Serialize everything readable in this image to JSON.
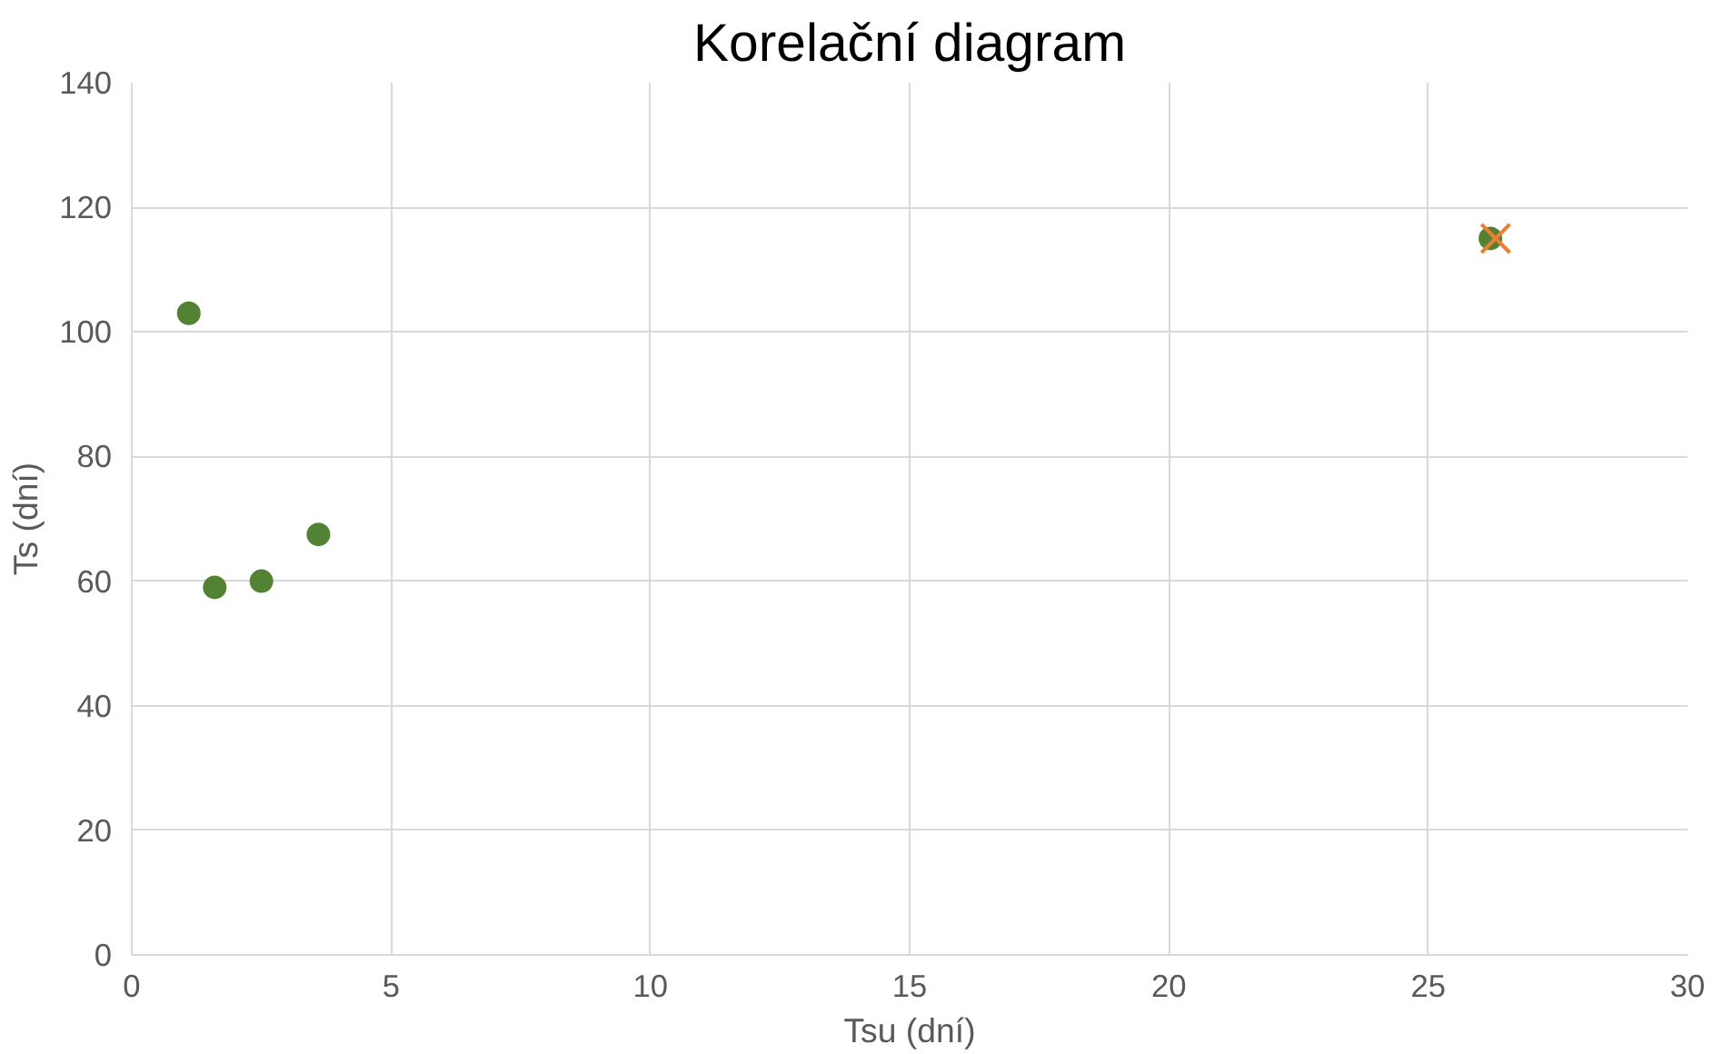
{
  "chart_data": {
    "type": "scatter",
    "title": "Korelační diagram",
    "xlabel": "Tsu (dní)",
    "ylabel": "Ts (dní)",
    "xlim": [
      0,
      30
    ],
    "xticks": [
      0,
      5,
      10,
      15,
      20,
      25,
      30
    ],
    "ylim": [
      0,
      140
    ],
    "yticks": [
      0,
      20,
      40,
      60,
      80,
      100,
      120,
      140
    ],
    "grid": true,
    "series": [
      {
        "color": "#548235",
        "marker": "circle",
        "x": [
          1.1,
          1.6,
          2.5,
          3.6,
          26.2
        ],
        "values": [
          103,
          59,
          60,
          67.5,
          115
        ]
      },
      {
        "color": "#ed7d31",
        "marker": "cross",
        "x": [
          26.3
        ],
        "values": [
          115
        ]
      }
    ]
  }
}
